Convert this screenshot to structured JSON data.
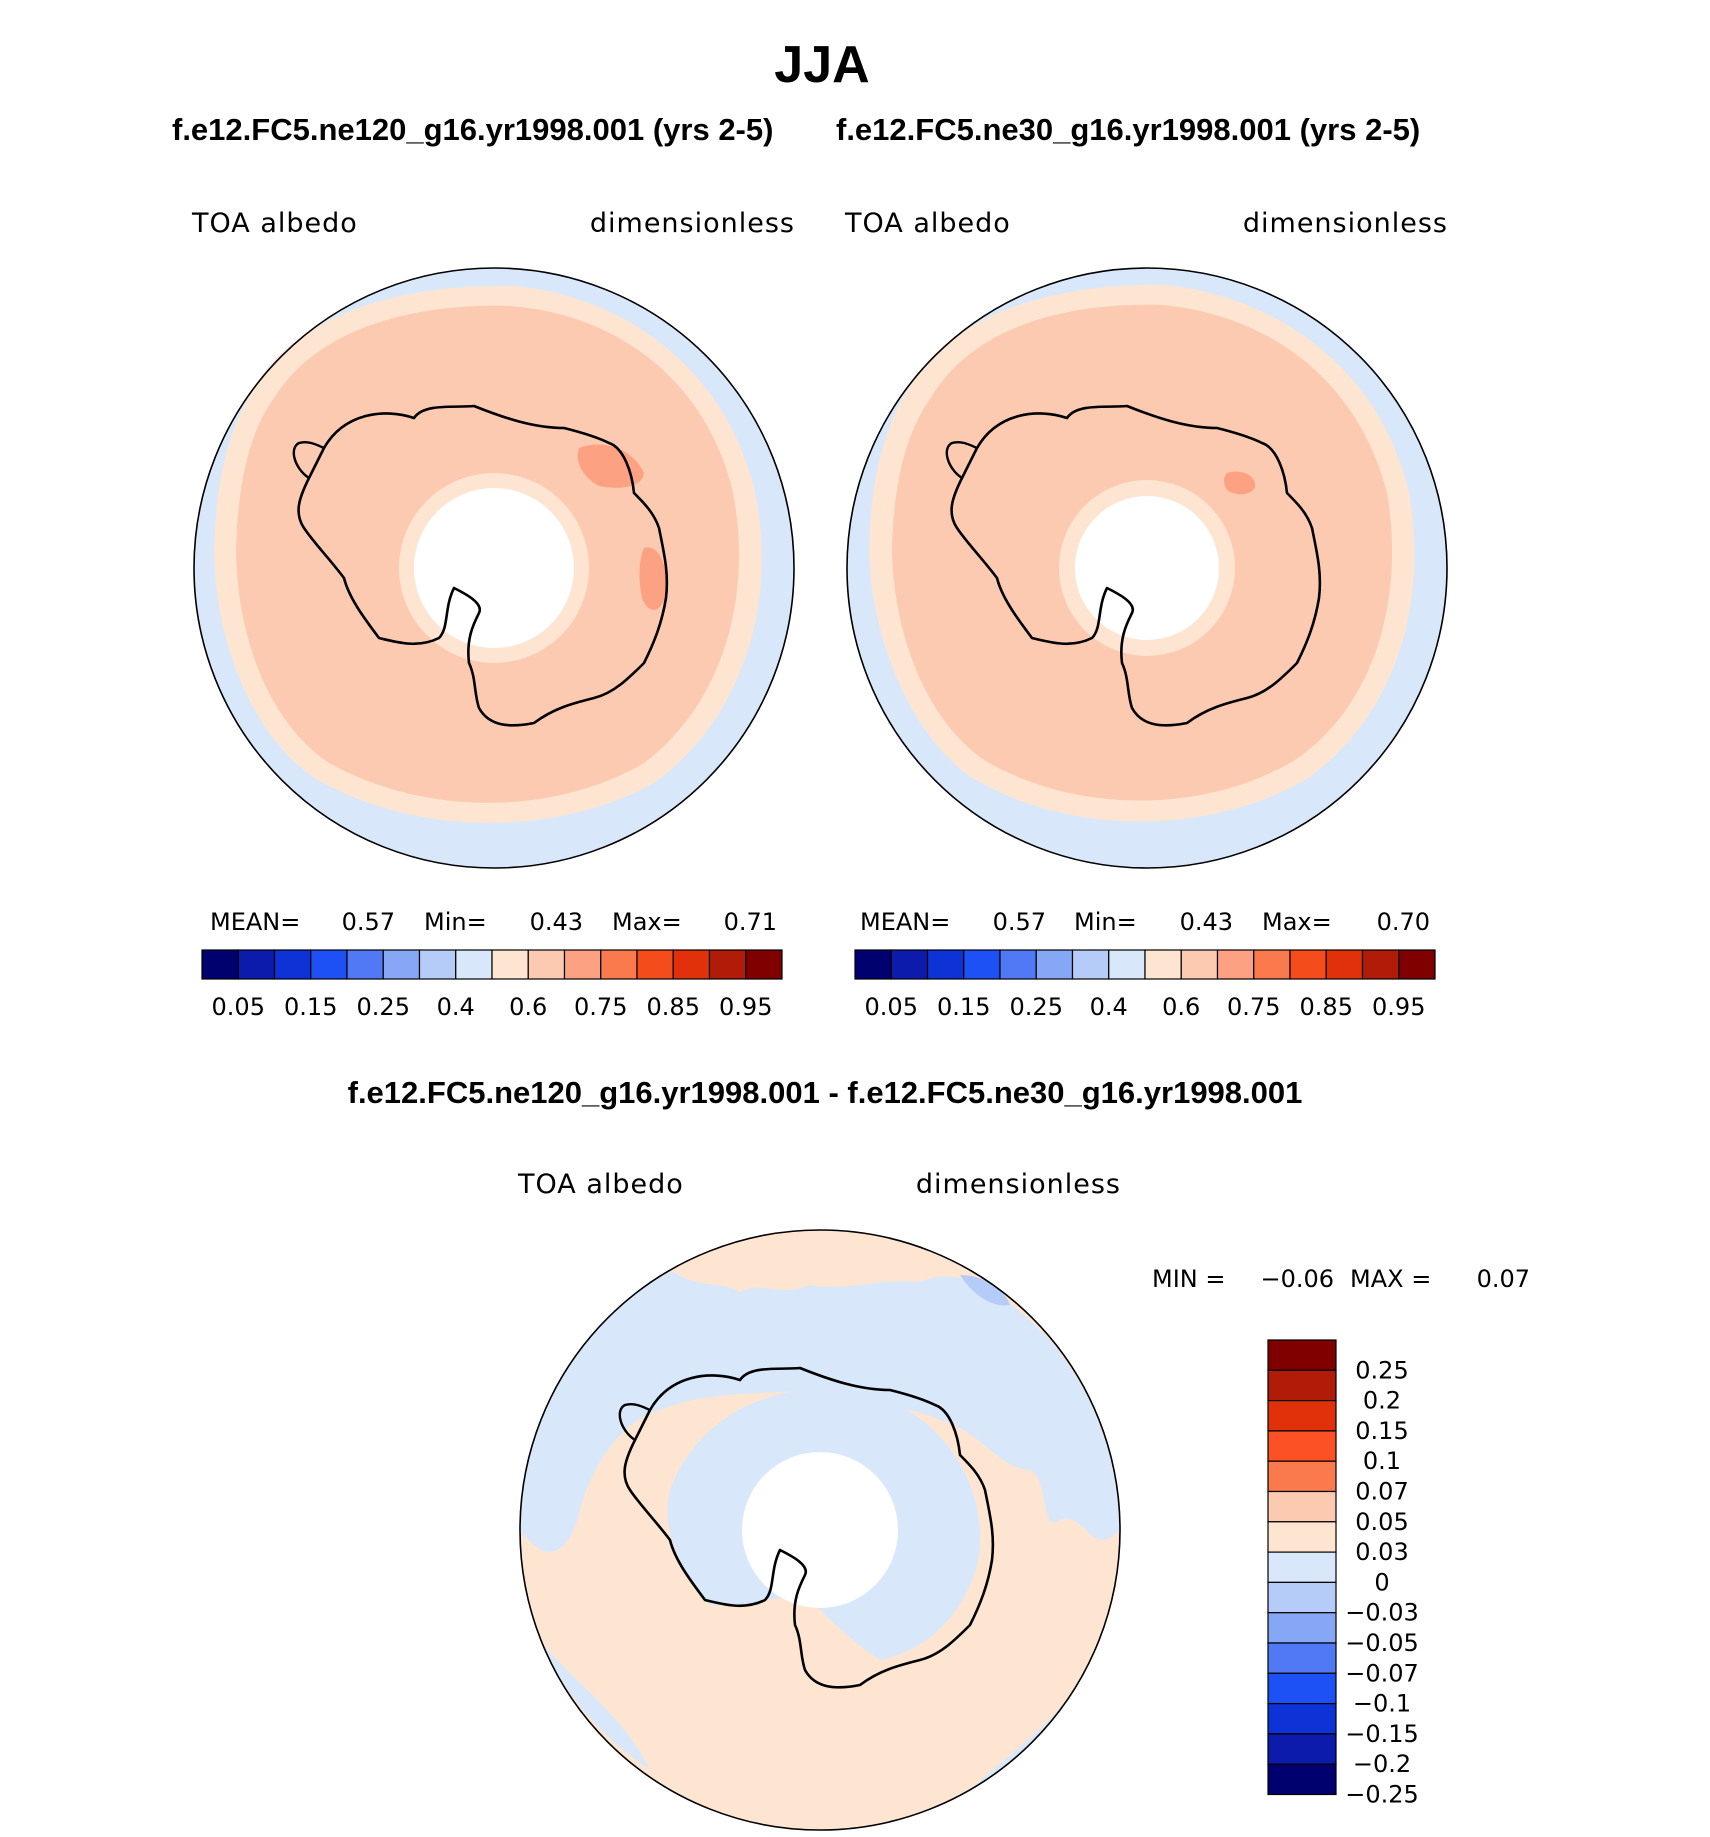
{
  "title": "JJA",
  "subtitle_left": "f.e12.FC5.ne120_g16.yr1998.001 (yrs 2-5)",
  "subtitle_right": "f.e12.FC5.ne30_g16.yr1998.001 (yrs 2-5)",
  "diff_title": "f.e12.FC5.ne120_g16.yr1998.001 - f.e12.FC5.ne30_g16.yr1998.001",
  "chart_data": [
    {
      "type": "heatmap",
      "projection": "south polar stereographic",
      "left_label": "TOA albedo",
      "right_label": "dimensionless",
      "stats": {
        "mean_label": "MEAN=",
        "mean": "0.57",
        "min_label": "Min=",
        "min": "0.43",
        "max_label": "Max=",
        "max": "0.71"
      },
      "colorbar": {
        "orientation": "horizontal",
        "colors": [
          "#00006e",
          "#0c1bab",
          "#0d33d6",
          "#1e51f5",
          "#5179f5",
          "#86a6f6",
          "#b6ccf8",
          "#d8e8fa",
          "#fde5d1",
          "#fccab0",
          "#fca282",
          "#fb7a4d",
          "#f54c1c",
          "#e0310a",
          "#b11c09",
          "#800000"
        ],
        "tick_labels": [
          "0.05",
          "0.15",
          "0.25",
          "0.4",
          "0.6",
          "0.75",
          "0.85",
          "0.95"
        ]
      }
    },
    {
      "type": "heatmap",
      "projection": "south polar stereographic",
      "left_label": "TOA albedo",
      "right_label": "dimensionless",
      "stats": {
        "mean_label": "MEAN=",
        "mean": "0.57",
        "min_label": "Min=",
        "min": "0.43",
        "max_label": "Max=",
        "max": "0.70"
      },
      "colorbar": {
        "orientation": "horizontal",
        "colors": [
          "#00006e",
          "#0c1bab",
          "#0d33d6",
          "#1e51f5",
          "#5179f5",
          "#86a6f6",
          "#b6ccf8",
          "#d8e8fa",
          "#fde5d1",
          "#fccab0",
          "#fca282",
          "#fb7a4d",
          "#f54c1c",
          "#e0310a",
          "#b11c09",
          "#800000"
        ],
        "tick_labels": [
          "0.05",
          "0.15",
          "0.25",
          "0.4",
          "0.6",
          "0.75",
          "0.85",
          "0.95"
        ]
      }
    },
    {
      "type": "heatmap",
      "projection": "south polar stereographic",
      "left_label": "TOA albedo",
      "right_label": "dimensionless",
      "stats": {
        "min_label": "MIN =",
        "min": "−0.06",
        "max_label": "MAX =",
        "max": "0.07"
      },
      "colorbar": {
        "orientation": "vertical",
        "colors": [
          "#800000",
          "#b11c09",
          "#e0310a",
          "#fc5125",
          "#fb7a4d",
          "#fccab0",
          "#fde5d1",
          "#d8e8fa",
          "#b6ccf8",
          "#86a6f6",
          "#5179f5",
          "#1e51f5",
          "#0d33d6",
          "#0c1bab",
          "#00006e"
        ],
        "tick_labels": [
          "0.25",
          "0.2",
          "0.15",
          "0.1",
          "0.07",
          "0.05",
          "0.03",
          "0",
          "−0.03",
          "−0.05",
          "−0.07",
          "−0.1",
          "−0.15",
          "−0.2",
          "−0.25"
        ]
      }
    }
  ]
}
